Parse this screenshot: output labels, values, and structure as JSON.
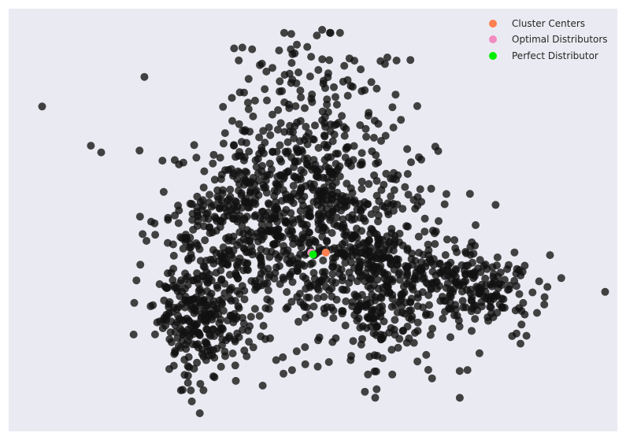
{
  "chart_data": {
    "type": "scatter",
    "title": "",
    "xlabel": "",
    "ylabel": "",
    "xlim": [
      0,
      1000
    ],
    "ylim": [
      0,
      700
    ],
    "grid": false,
    "axes_ticks": false,
    "legend_placement": "top-right",
    "colors": {
      "plot_background": "#eaeaf2",
      "points": "#111111",
      "cluster_centers": "#ff7f50",
      "optimal_distributors": "#f28cc0",
      "perfect_distributor": "#00ee00"
    },
    "series": [
      {
        "name": "Cluster Centers",
        "color": "#ff7f50",
        "points": [
          [
            521,
            296
          ]
        ]
      },
      {
        "name": "Optimal Distributors",
        "color": "#f28cc0",
        "points": [
          [
            497,
            296
          ]
        ]
      },
      {
        "name": "Perfect Distributor",
        "color": "#00ee00",
        "points": [
          [
            500,
            293
          ]
        ]
      }
    ],
    "background_points": {
      "description_clusters": [
        {
          "cx": 490,
          "cy": 430,
          "sx": 70,
          "sy": 110,
          "n": 430
        },
        {
          "cx": 375,
          "cy": 330,
          "sx": 65,
          "sy": 70,
          "n": 320
        },
        {
          "cx": 320,
          "cy": 185,
          "sx": 40,
          "sy": 55,
          "n": 260
        },
        {
          "cx": 615,
          "cy": 235,
          "sx": 70,
          "sy": 65,
          "n": 330
        },
        {
          "cx": 770,
          "cy": 240,
          "sx": 55,
          "sy": 30,
          "n": 170
        },
        {
          "cx": 560,
          "cy": 330,
          "sx": 80,
          "sy": 75,
          "n": 260
        }
      ],
      "seed": 7,
      "outliers": [
        [
          55,
          538
        ],
        [
          515,
          665
        ],
        [
          215,
          465
        ],
        [
          223,
          587
        ],
        [
          135,
          473
        ],
        [
          152,
          462
        ],
        [
          800,
          375
        ],
        [
          980,
          231
        ],
        [
          210,
          250
        ],
        [
          237,
          209
        ],
        [
          355,
          132
        ],
        [
          320,
          68
        ],
        [
          465,
          610
        ],
        [
          585,
          565
        ],
        [
          880,
          210
        ],
        [
          660,
          615
        ],
        [
          470,
          626
        ],
        [
          650,
          230
        ]
      ]
    }
  },
  "legend": {
    "items": [
      {
        "label": "Cluster Centers",
        "color": "#ff7f50"
      },
      {
        "label": "Optimal Distributors",
        "color": "#f28cc0"
      },
      {
        "label": "Perfect Distributor",
        "color": "#00ee00"
      }
    ]
  }
}
